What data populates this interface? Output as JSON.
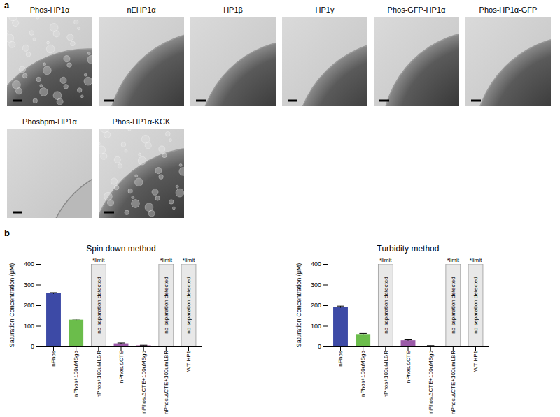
{
  "panel_labels": [
    "a",
    "b"
  ],
  "micrographs": [
    {
      "label": "Phos-HP1α"
    },
    {
      "label": "nEHP1α"
    },
    {
      "label": "HP1β"
    },
    {
      "label": "HP1γ"
    },
    {
      "label": "Phos-GFP-HP1α"
    },
    {
      "label": "Phos-HP1α-GFP"
    },
    {
      "label": "Phosbpm-HP1α"
    },
    {
      "label": "Phos-HP1α-KCK"
    }
  ],
  "chart_data": [
    {
      "type": "bar",
      "title": "Spin down method",
      "y_label": "Saturation Concentration (μM)",
      "categories": [
        "nPhos",
        "nPhos+100uMSgo",
        "nPhos+100uMLBR",
        "nPhos.ΔCTE",
        "nPhos.ΔCTE+100uMSgo",
        "nPhos.ΔCTE+100umLBR",
        "WT HP1"
      ],
      "values": [
        258,
        130,
        null,
        15,
        5,
        null,
        null
      ],
      "errors": [
        3,
        3,
        null,
        2,
        1,
        null,
        null
      ],
      "colors": [
        "#3d4aa6",
        "#6bbd4b",
        "#e8e8e8",
        "#9b5aa8",
        "#a0479a",
        "#e8e8e8",
        "#e8e8e8"
      ],
      "limit": [
        null,
        null,
        400,
        null,
        null,
        400,
        400
      ],
      "limit_label": "*limit",
      "limit_text": "no separation detected",
      "ylim": [
        0,
        400
      ],
      "yticks": [
        0,
        100,
        200,
        300,
        400
      ]
    },
    {
      "type": "bar",
      "title": "Turbidity method",
      "y_label": "Saturation Concentration (μM)",
      "categories": [
        "nPhos",
        "nPhos+100uMSgo",
        "nPhos+100uMLBR",
        "nPhos.ΔCTE",
        "nPhos.ΔCTE+100uMSgo",
        "nPhos.ΔCTE+100umLBR",
        "WT HP1"
      ],
      "values": [
        192,
        60,
        null,
        30,
        3,
        null,
        null
      ],
      "errors": [
        4,
        3,
        null,
        2,
        1,
        null,
        null
      ],
      "colors": [
        "#3d4aa6",
        "#6bbd4b",
        "#e8e8e8",
        "#9b5aa8",
        "#a0479a",
        "#e8e8e8",
        "#e8e8e8"
      ],
      "limit": [
        null,
        null,
        400,
        null,
        null,
        400,
        400
      ],
      "limit_label": "*limit",
      "limit_text": "no separation detected",
      "ylim": [
        0,
        400
      ],
      "yticks": [
        0,
        100,
        200,
        300,
        400
      ]
    }
  ]
}
